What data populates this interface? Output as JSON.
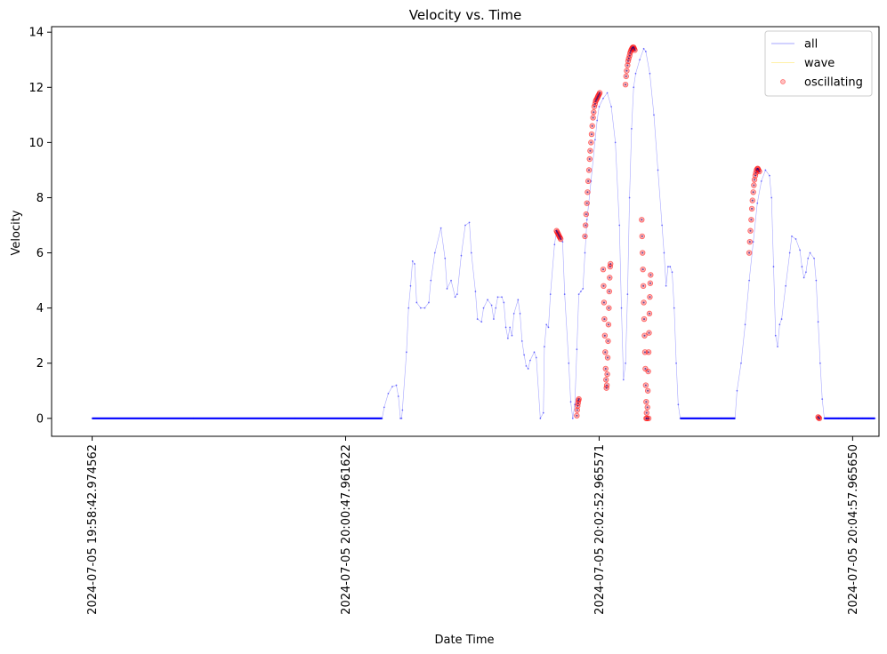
{
  "chart_data": {
    "type": "line",
    "title": "Velocity vs. Time",
    "xlabel": "Date Time",
    "ylabel": "Velocity",
    "ylim": [
      -0.65,
      14.2
    ],
    "xlim_seconds_from_start": [
      -20,
      388
    ],
    "y_ticks": [
      0,
      2,
      4,
      6,
      8,
      10,
      12,
      14
    ],
    "x_ticks": [
      {
        "label": "2024-07-05 19:58:42.974562",
        "t": 0
      },
      {
        "label": "2024-07-05 20:00:47.961622",
        "t": 125
      },
      {
        "label": "2024-07-05 20:02:52.965571",
        "t": 250
      },
      {
        "label": "2024-07-05 20:04:57.965650",
        "t": 375
      }
    ],
    "legend": {
      "placement": "top-right",
      "entries": [
        {
          "label": "all",
          "color": "#0000ff",
          "style": "line"
        },
        {
          "label": "wave",
          "color": "#ffd700",
          "style": "line"
        },
        {
          "label": "oscillating",
          "color": "#ff0000",
          "style": "marker"
        }
      ]
    },
    "series": [
      {
        "name": "all",
        "color": "#0000ff",
        "points": [
          [
            0,
            0
          ],
          [
            50,
            0
          ],
          [
            100,
            0
          ],
          [
            143,
            0
          ],
          [
            144,
            0.4
          ],
          [
            146,
            0.9
          ],
          [
            148,
            1.15
          ],
          [
            150,
            1.2
          ],
          [
            151,
            0.8
          ],
          [
            152,
            0
          ],
          [
            152.6,
            0
          ],
          [
            153,
            0.3
          ],
          [
            155,
            2.4
          ],
          [
            156,
            4.0
          ],
          [
            157,
            4.8
          ],
          [
            158,
            5.7
          ],
          [
            159,
            5.6
          ],
          [
            160,
            4.2
          ],
          [
            162,
            4.0
          ],
          [
            164,
            4.0
          ],
          [
            166,
            4.2
          ],
          [
            167,
            5.0
          ],
          [
            169,
            6.0
          ],
          [
            172,
            6.9
          ],
          [
            174,
            5.8
          ],
          [
            175,
            4.7
          ],
          [
            177,
            5.0
          ],
          [
            179,
            4.4
          ],
          [
            180,
            4.5
          ],
          [
            182,
            5.9
          ],
          [
            184,
            7.0
          ],
          [
            186,
            7.1
          ],
          [
            187,
            6.0
          ],
          [
            189,
            4.6
          ],
          [
            190,
            3.6
          ],
          [
            192,
            3.5
          ],
          [
            193,
            4.0
          ],
          [
            195,
            4.3
          ],
          [
            197,
            4.1
          ],
          [
            198,
            3.6
          ],
          [
            199,
            4.0
          ],
          [
            200,
            4.4
          ],
          [
            202,
            4.4
          ],
          [
            203,
            4.2
          ],
          [
            204,
            3.3
          ],
          [
            205,
            2.9
          ],
          [
            206,
            3.3
          ],
          [
            207,
            3.0
          ],
          [
            208,
            3.8
          ],
          [
            210,
            4.3
          ],
          [
            211,
            3.8
          ],
          [
            212,
            2.8
          ],
          [
            213,
            2.3
          ],
          [
            214,
            1.9
          ],
          [
            215,
            1.8
          ],
          [
            216,
            2.1
          ],
          [
            218,
            2.4
          ],
          [
            219,
            2.2
          ],
          [
            221,
            0
          ],
          [
            222.5,
            0.2
          ],
          [
            223,
            2.6
          ],
          [
            224,
            3.4
          ],
          [
            225,
            3.3
          ],
          [
            226,
            4.5
          ],
          [
            228,
            6.3
          ],
          [
            229,
            6.8
          ],
          [
            231,
            6.6
          ],
          [
            232,
            6.4
          ],
          [
            233,
            4.5
          ],
          [
            235,
            2.0
          ],
          [
            236,
            0.6
          ],
          [
            237,
            0
          ],
          [
            238,
            0.5
          ],
          [
            239,
            2.5
          ],
          [
            240,
            4.5
          ],
          [
            241,
            4.6
          ],
          [
            242,
            4.7
          ],
          [
            243,
            6.0
          ],
          [
            244,
            7.2
          ],
          [
            246,
            8.6
          ],
          [
            248,
            10.1
          ],
          [
            249,
            10.8
          ],
          [
            250,
            11.3
          ],
          [
            252,
            11.6
          ],
          [
            254,
            11.8
          ],
          [
            256,
            11.3
          ],
          [
            258,
            10.0
          ],
          [
            260,
            7.0
          ],
          [
            261,
            4.0
          ],
          [
            262,
            1.4
          ],
          [
            263,
            2.0
          ],
          [
            264,
            4.5
          ],
          [
            265,
            8.0
          ],
          [
            266,
            10.5
          ],
          [
            267,
            12.0
          ],
          [
            268,
            12.5
          ],
          [
            270,
            13.0
          ],
          [
            272,
            13.4
          ],
          [
            273,
            13.3
          ],
          [
            275,
            12.5
          ],
          [
            277,
            11.0
          ],
          [
            279,
            9.0
          ],
          [
            281,
            7.0
          ],
          [
            282,
            6.0
          ],
          [
            283,
            4.8
          ],
          [
            284,
            5.5
          ],
          [
            285,
            5.5
          ],
          [
            286,
            5.3
          ],
          [
            287,
            4.0
          ],
          [
            288,
            2.0
          ],
          [
            289,
            0.5
          ],
          [
            290,
            0
          ],
          [
            300,
            0
          ],
          [
            310,
            0
          ],
          [
            317,
            0
          ],
          [
            318,
            1.0
          ],
          [
            320,
            2.0
          ],
          [
            322,
            3.4
          ],
          [
            324,
            5.0
          ],
          [
            326,
            6.4
          ],
          [
            328,
            7.8
          ],
          [
            330,
            8.6
          ],
          [
            332,
            9.0
          ],
          [
            334,
            8.8
          ],
          [
            335,
            8.0
          ],
          [
            336,
            5.5
          ],
          [
            337,
            3.0
          ],
          [
            338,
            2.6
          ],
          [
            339,
            3.4
          ],
          [
            340,
            3.6
          ],
          [
            342,
            4.8
          ],
          [
            344,
            6.0
          ],
          [
            345,
            6.6
          ],
          [
            347,
            6.5
          ],
          [
            349,
            6.1
          ],
          [
            350,
            5.5
          ],
          [
            351,
            5.1
          ],
          [
            352,
            5.3
          ],
          [
            353,
            5.8
          ],
          [
            354,
            6.0
          ],
          [
            356,
            5.8
          ],
          [
            357,
            5.0
          ],
          [
            358,
            3.5
          ],
          [
            359,
            2.0
          ],
          [
            360,
            0.7
          ],
          [
            361,
            0
          ],
          [
            368,
            0
          ],
          [
            372,
            0
          ],
          [
            375,
            0
          ],
          [
            380,
            0
          ],
          [
            383,
            0
          ],
          [
            386,
            0
          ]
        ]
      },
      {
        "name": "wave",
        "color": "#ffd700",
        "points": []
      },
      {
        "name": "oscillating",
        "color": "#ff0000",
        "points": [
          [
            229,
            6.8
          ],
          [
            229.3,
            6.75
          ],
          [
            229.7,
            6.7
          ],
          [
            230,
            6.65
          ],
          [
            230.3,
            6.6
          ],
          [
            230.7,
            6.55
          ],
          [
            231,
            6.5
          ],
          [
            239,
            0.1
          ],
          [
            239.2,
            0.3
          ],
          [
            239.4,
            0.45
          ],
          [
            239.6,
            0.55
          ],
          [
            239.8,
            0.65
          ],
          [
            240,
            0.7
          ],
          [
            243,
            6.6
          ],
          [
            243.3,
            7.0
          ],
          [
            243.6,
            7.4
          ],
          [
            244,
            7.8
          ],
          [
            244.3,
            8.2
          ],
          [
            244.6,
            8.6
          ],
          [
            245,
            9.0
          ],
          [
            245.3,
            9.4
          ],
          [
            245.6,
            9.7
          ],
          [
            246,
            10.0
          ],
          [
            246.3,
            10.3
          ],
          [
            246.6,
            10.6
          ],
          [
            247,
            10.9
          ],
          [
            247.3,
            11.1
          ],
          [
            247.6,
            11.3
          ],
          [
            248,
            11.4
          ],
          [
            248.3,
            11.5
          ],
          [
            248.6,
            11.55
          ],
          [
            249,
            11.6
          ],
          [
            249.3,
            11.65
          ],
          [
            249.6,
            11.7
          ],
          [
            250,
            11.75
          ],
          [
            250.3,
            11.8
          ],
          [
            252,
            5.4
          ],
          [
            252.2,
            4.8
          ],
          [
            252.4,
            4.2
          ],
          [
            252.6,
            3.6
          ],
          [
            252.8,
            3.0
          ],
          [
            253,
            2.4
          ],
          [
            253.2,
            1.8
          ],
          [
            253.4,
            1.4
          ],
          [
            253.6,
            1.1
          ],
          [
            253.8,
            1.2
          ],
          [
            254,
            1.6
          ],
          [
            254.2,
            2.2
          ],
          [
            254.4,
            2.8
          ],
          [
            254.6,
            3.4
          ],
          [
            254.8,
            4.0
          ],
          [
            255,
            4.6
          ],
          [
            255.2,
            5.1
          ],
          [
            255.4,
            5.5
          ],
          [
            255.6,
            5.6
          ],
          [
            263,
            12.1
          ],
          [
            263.3,
            12.4
          ],
          [
            263.6,
            12.6
          ],
          [
            264,
            12.8
          ],
          [
            264.3,
            12.95
          ],
          [
            264.6,
            13.05
          ],
          [
            265,
            13.15
          ],
          [
            265.3,
            13.25
          ],
          [
            265.6,
            13.32
          ],
          [
            266,
            13.38
          ],
          [
            266.3,
            13.42
          ],
          [
            266.6,
            13.45
          ],
          [
            267,
            13.45
          ],
          [
            267.3,
            13.4
          ],
          [
            267.6,
            13.35
          ],
          [
            271,
            7.2
          ],
          [
            271.2,
            6.6
          ],
          [
            271.4,
            6.0
          ],
          [
            271.6,
            5.4
          ],
          [
            271.8,
            4.8
          ],
          [
            272,
            4.2
          ],
          [
            272.2,
            3.6
          ],
          [
            272.4,
            3.0
          ],
          [
            272.6,
            2.4
          ],
          [
            272.8,
            1.8
          ],
          [
            273,
            1.2
          ],
          [
            273.2,
            0.6
          ],
          [
            273.4,
            0.2
          ],
          [
            273.6,
            0
          ],
          [
            273.8,
            0.4
          ],
          [
            274,
            1.0
          ],
          [
            274.2,
            1.7
          ],
          [
            274.4,
            2.4
          ],
          [
            274.6,
            3.1
          ],
          [
            274.8,
            3.8
          ],
          [
            275,
            4.4
          ],
          [
            275.2,
            4.9
          ],
          [
            275.4,
            5.2
          ],
          [
            273.2,
            0
          ],
          [
            274.4,
            0
          ],
          [
            324,
            6.0
          ],
          [
            324.3,
            6.4
          ],
          [
            324.6,
            6.8
          ],
          [
            325,
            7.2
          ],
          [
            325.3,
            7.6
          ],
          [
            325.6,
            7.9
          ],
          [
            326,
            8.2
          ],
          [
            326.3,
            8.45
          ],
          [
            326.6,
            8.65
          ],
          [
            327,
            8.8
          ],
          [
            327.3,
            8.9
          ],
          [
            327.6,
            9.0
          ],
          [
            328,
            9.05
          ],
          [
            328.3,
            9.05
          ],
          [
            328.6,
            9.0
          ],
          [
            329,
            8.95
          ],
          [
            358,
            0.05
          ],
          [
            358.3,
            0.02
          ],
          [
            358.6,
            0
          ]
        ]
      }
    ]
  }
}
